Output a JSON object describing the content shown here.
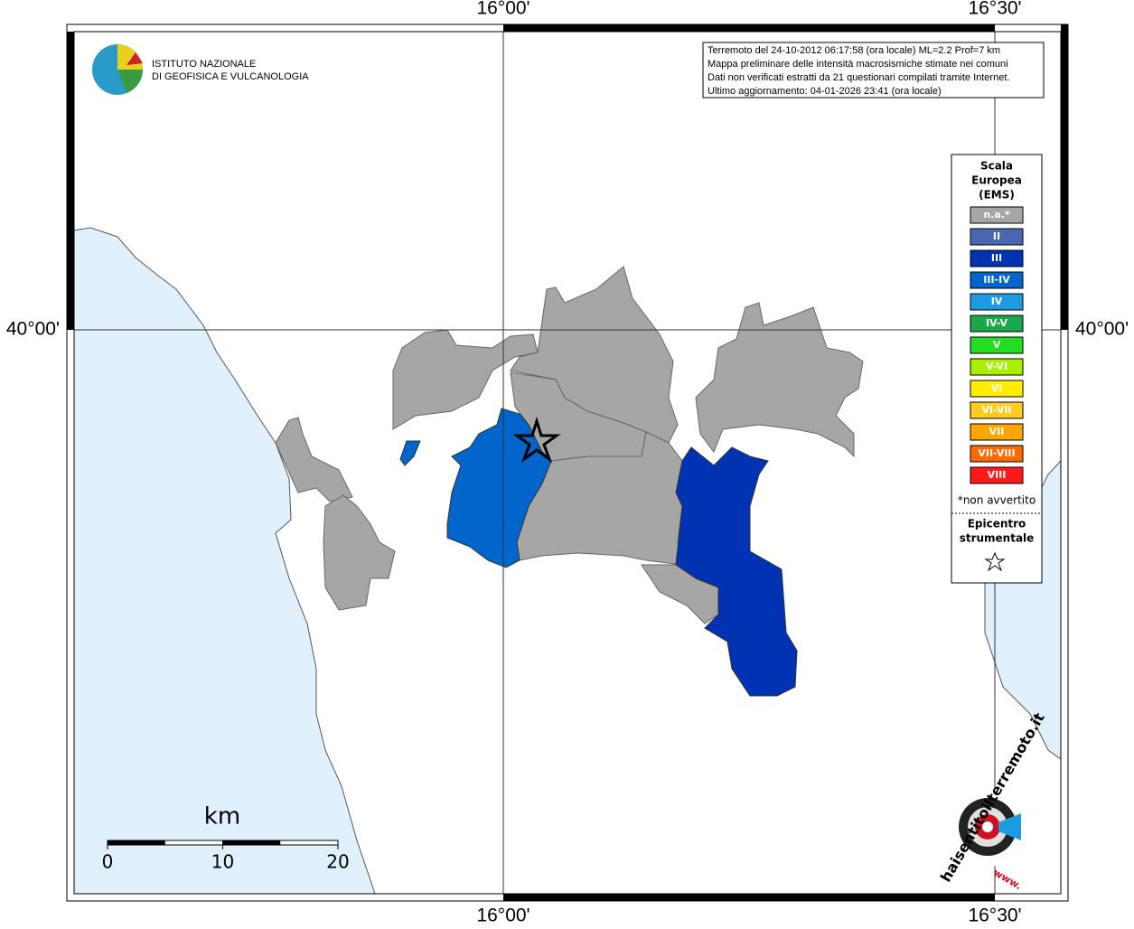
{
  "axes": {
    "top": [
      "16°00'",
      "16°30'"
    ],
    "bottom": [
      "16°00'",
      "16°30'"
    ],
    "left": [
      "40°00'"
    ],
    "right": [
      "40°00'"
    ]
  },
  "logo": {
    "line1": "ISTITUTO NAZIONALE",
    "line2": "DI GEOFISICA E VULCANOLOGIA"
  },
  "info": [
    "Terremoto del 24-10-2012 06:17:58 (ora locale) ML=2.2 Prof=7 km",
    "Mappa preliminare delle intensità macrosismiche stimate nei comuni",
    "Dati non verificati estratti da 21 questionari compilati tramite Internet.",
    "Ultimo aggiornamento: 04-01-2026 23:41 (ora locale)"
  ],
  "legend": {
    "title": [
      "Scala",
      "Europea",
      "(EMS)"
    ],
    "items": [
      {
        "label": "n.a.*",
        "color": "#a6a6a6"
      },
      {
        "label": "II",
        "color": "#4a66b0"
      },
      {
        "label": "III",
        "color": "#0033b3"
      },
      {
        "label": "III-IV",
        "color": "#0066cc"
      },
      {
        "label": "IV",
        "color": "#1e9be0"
      },
      {
        "label": "IV-V",
        "color": "#1aa84a"
      },
      {
        "label": "V",
        "color": "#22dd22"
      },
      {
        "label": "V-VI",
        "color": "#aaee00"
      },
      {
        "label": "VI",
        "color": "#ffee00"
      },
      {
        "label": "VI-VII",
        "color": "#ffcc22"
      },
      {
        "label": "VII",
        "color": "#ffa500"
      },
      {
        "label": "VII-VIII",
        "color": "#ff6a00"
      },
      {
        "label": "VIII",
        "color": "#ff1a1a"
      }
    ],
    "note": "*non avvertito",
    "epicenter": [
      "Epicentro",
      "strumentale"
    ]
  },
  "scale_bar": {
    "unit": "km",
    "ticks": [
      0,
      10,
      20
    ]
  },
  "watermark": {
    "text": "haisentitoilterremoto.it",
    "www": "www."
  }
}
